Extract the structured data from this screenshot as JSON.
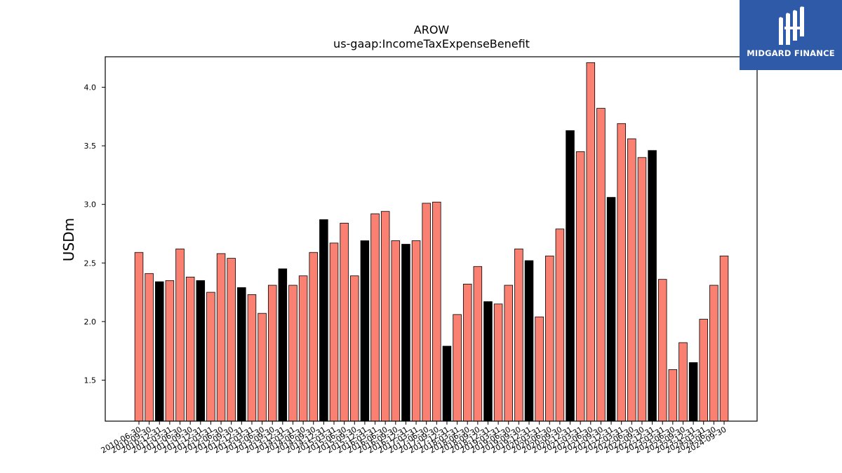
{
  "chart_data": {
    "type": "bar",
    "title": "AROW",
    "subtitle": "us-gaap:IncomeTaxExpenseBenefit",
    "xlabel": "",
    "ylabel": "USDm",
    "ylim": [
      1.15,
      4.26
    ],
    "yticks": [
      1.5,
      2.0,
      2.5,
      3.0,
      3.5,
      4.0
    ],
    "ytick_labels": [
      "1.5",
      "2.0",
      "2.5",
      "3.0",
      "3.5",
      "4.0"
    ],
    "grid": false,
    "colors": {
      "quarter": "#fa8072",
      "annual": "#000000",
      "edge": "#000000"
    },
    "categories": [
      "2010-06-30",
      "2010-09-30",
      "2010-12-31",
      "2011-03-31",
      "2011-06-30",
      "2011-09-30",
      "2011-12-31",
      "2012-03-31",
      "2012-06-30",
      "2012-09-30",
      "2012-12-31",
      "2013-03-31",
      "2013-06-30",
      "2013-09-30",
      "2013-12-31",
      "2014-03-31",
      "2014-06-30",
      "2014-09-30",
      "2014-12-31",
      "2015-03-31",
      "2015-06-30",
      "2015-09-30",
      "2015-12-31",
      "2016-03-31",
      "2016-06-30",
      "2016-09-30",
      "2016-12-31",
      "2017-03-31",
      "2017-06-30",
      "2017-09-30",
      "2017-12-31",
      "2018-03-31",
      "2018-06-30",
      "2018-09-30",
      "2018-12-31",
      "2019-03-31",
      "2019-06-30",
      "2019-09-30",
      "2019-12-31",
      "2020-03-31",
      "2020-06-30",
      "2020-09-30",
      "2020-12-31",
      "2021-03-31",
      "2021-06-30",
      "2021-09-30",
      "2021-12-31",
      "2022-03-31",
      "2022-06-30",
      "2022-09-30",
      "2022-12-31",
      "2023-03-31",
      "2023-06-30",
      "2023-09-30",
      "2023-12-31",
      "2024-03-31",
      "2024-06-30",
      "2024-09-30"
    ],
    "values": [
      2.59,
      2.41,
      2.34,
      2.35,
      2.62,
      2.38,
      2.35,
      2.25,
      2.58,
      2.54,
      2.29,
      2.23,
      2.07,
      2.31,
      2.45,
      2.31,
      2.39,
      2.59,
      2.87,
      2.67,
      2.84,
      2.39,
      2.69,
      2.92,
      2.94,
      2.69,
      2.66,
      2.69,
      3.01,
      3.02,
      1.79,
      2.06,
      2.32,
      2.47,
      2.17,
      2.15,
      2.31,
      2.62,
      2.52,
      2.04,
      2.56,
      2.79,
      3.63,
      3.45,
      4.21,
      3.82,
      3.06,
      3.69,
      3.56,
      3.4,
      3.46,
      2.36,
      1.59,
      1.82,
      1.65,
      2.02,
      2.31,
      2.56
    ],
    "annual": [
      false,
      false,
      true,
      false,
      false,
      false,
      true,
      false,
      false,
      false,
      true,
      false,
      false,
      false,
      true,
      false,
      false,
      false,
      true,
      false,
      false,
      false,
      true,
      false,
      false,
      false,
      true,
      false,
      false,
      false,
      true,
      false,
      false,
      false,
      true,
      false,
      false,
      false,
      true,
      false,
      false,
      false,
      true,
      false,
      false,
      false,
      true,
      false,
      false,
      false,
      true,
      false,
      false,
      false,
      true,
      false,
      false,
      false
    ]
  },
  "logo": {
    "text": "MIDGARD FINANCE",
    "icon": "midgard-logo-icon",
    "background": "#2e5aa8"
  }
}
